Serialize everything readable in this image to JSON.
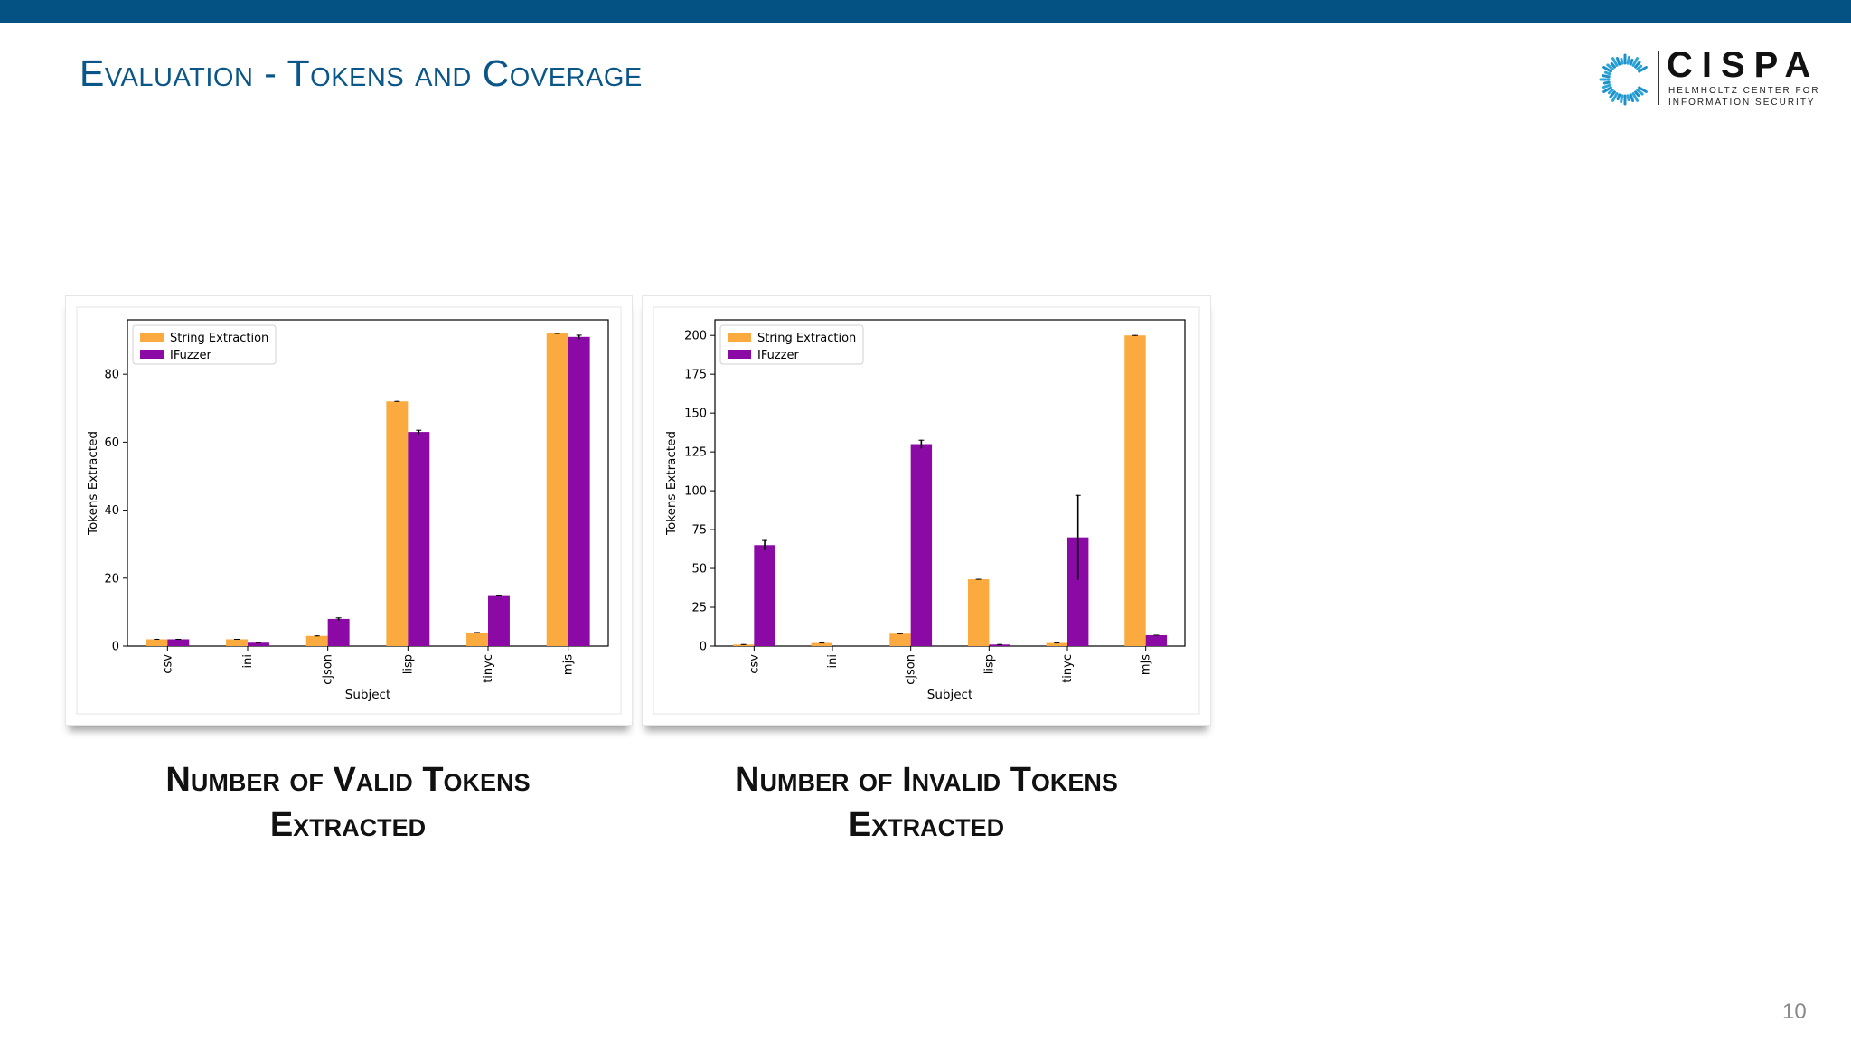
{
  "slide": {
    "title": "Evaluation - Tokens and Coverage",
    "page_number": "10",
    "captions": [
      "Number of Valid Tokens Extracted",
      "Number of Invalid Tokens Extracted"
    ]
  },
  "logo": {
    "word": "CISPA",
    "subtitle_line1": "HELMHOLTZ CENTER FOR",
    "subtitle_line2": "INFORMATION SECURITY"
  },
  "colors": {
    "accent": "#045184",
    "title": "#0a5689",
    "string_extraction": "#fbaa3f",
    "ifuzzer": "#8b0aa5"
  },
  "chart_data": [
    {
      "type": "bar",
      "title": "",
      "xlabel": "Subject",
      "ylabel": "Tokens Extracted",
      "categories": [
        "csv",
        "ini",
        "cjson",
        "lisp",
        "tinyc",
        "mjs"
      ],
      "ylim": [
        0,
        96
      ],
      "yticks": [
        0,
        20,
        40,
        60,
        80
      ],
      "legend_position": "top-left",
      "series": [
        {
          "name": "String Extraction",
          "color": "#fbaa3f",
          "values": [
            2,
            2,
            3,
            72,
            4,
            92
          ],
          "errors": [
            0,
            0,
            0,
            0,
            0,
            0
          ]
        },
        {
          "name": "IFuzzer",
          "color": "#8b0aa5",
          "values": [
            2,
            1,
            8,
            63,
            15,
            91
          ],
          "errors": [
            0,
            0,
            0.3,
            0.5,
            0,
            0.5
          ]
        }
      ]
    },
    {
      "type": "bar",
      "title": "",
      "xlabel": "Subject",
      "ylabel": "Tokens Extracted",
      "categories": [
        "csv",
        "ini",
        "cjson",
        "lisp",
        "tinyc",
        "mjs"
      ],
      "ylim": [
        0,
        210
      ],
      "yticks": [
        0,
        25,
        50,
        75,
        100,
        125,
        150,
        175,
        200
      ],
      "legend_position": "top-left",
      "series": [
        {
          "name": "String Extraction",
          "color": "#fbaa3f",
          "values": [
            1,
            2,
            8,
            43,
            2,
            200
          ],
          "errors": [
            0,
            0,
            0,
            0,
            0,
            0
          ]
        },
        {
          "name": "IFuzzer",
          "color": "#8b0aa5",
          "values": [
            65,
            0,
            130,
            1,
            70,
            7
          ],
          "errors": [
            3,
            0,
            2.5,
            0,
            27,
            0
          ]
        }
      ]
    }
  ]
}
